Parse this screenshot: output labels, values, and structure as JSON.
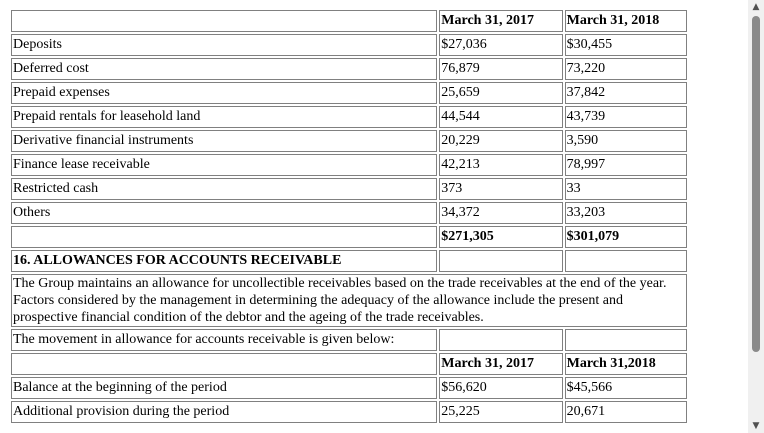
{
  "table": {
    "header": {
      "col1": "March 31, 2017",
      "col2": "March 31, 2018"
    },
    "rows": [
      {
        "label": "Deposits",
        "v2017": "$27,036",
        "v2018": "$30,455"
      },
      {
        "label": "Deferred cost",
        "v2017": "76,879",
        "v2018": "73,220"
      },
      {
        "label": "Prepaid expenses",
        "v2017": "25,659",
        "v2018": "37,842"
      },
      {
        "label": "Prepaid rentals for leasehold land",
        "v2017": "44,544",
        "v2018": "43,739"
      },
      {
        "label": "Derivative financial instruments",
        "v2017": "20,229",
        "v2018": "3,590"
      },
      {
        "label": "Finance lease receivable",
        "v2017": "42,213",
        "v2018": "78,997"
      },
      {
        "label": "Restricted cash",
        "v2017": "373",
        "v2018": "33"
      },
      {
        "label": "Others",
        "v2017": "34,372",
        "v2018": "33,203"
      }
    ],
    "total": {
      "v2017": "$271,305",
      "v2018": "$301,079"
    }
  },
  "section": {
    "title": "16. ALLOWANCES FOR ACCOUNTS RECEIVABLE",
    "paragraph": "The Group maintains an allowance for uncollectible receivables based on the trade receivables at the end of the year. Factors considered by the management in determining the adequacy of the allowance include the present and prospective financial condition of the debtor and the ageing of the trade receivables.",
    "movement_intro": "The movement in allowance for accounts receivable is given below:",
    "header": {
      "col1": "March 31, 2017",
      "col2": "March 31,2018"
    },
    "rows": [
      {
        "label": "Balance at the beginning of the period",
        "v2017": "$56,620",
        "v2018": "$45,566"
      },
      {
        "label": "Additional provision during the period",
        "v2017": "25,225",
        "v2018": "20,671"
      }
    ]
  },
  "scrollbar": {
    "up_icon": "triangle-up",
    "down_icon": "triangle-down"
  }
}
